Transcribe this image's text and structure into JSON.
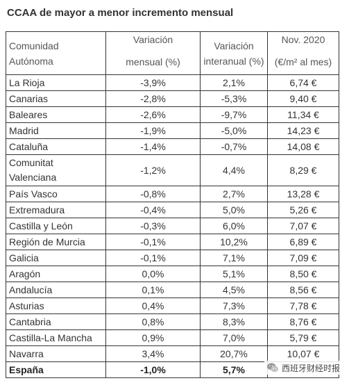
{
  "title": "CCAA de mayor a menor incremento mensual",
  "headers": {
    "col1": "Comunidad Autónoma",
    "col2_line1": "Variación",
    "col2_line2": "mensual (%)",
    "col3": "Variación interanual (%)",
    "col4_line1": "Nov. 2020",
    "col4_line2": "(€/m² al mes)"
  },
  "rows": [
    {
      "region": "La Rioja",
      "monthly": "-3,9%",
      "yearly": "2,1%",
      "price": "6,74 €"
    },
    {
      "region": "Canarias",
      "monthly": "-2,8%",
      "yearly": "-5,3%",
      "price": "9,40 €"
    },
    {
      "region": "Baleares",
      "monthly": "-2,6%",
      "yearly": "-9,7%",
      "price": "11,34 €"
    },
    {
      "region": "Madrid",
      "monthly": "-1,9%",
      "yearly": "-5,0%",
      "price": "14,23 €"
    },
    {
      "region": "Cataluña",
      "monthly": "-1,4%",
      "yearly": "-0,7%",
      "price": "14,08 €"
    },
    {
      "region": "Comunitat Valenciana",
      "monthly": "-1,2%",
      "yearly": "4,4%",
      "price": "8,29 €"
    },
    {
      "region": "País Vasco",
      "monthly": "-0,8%",
      "yearly": "2,7%",
      "price": "13,28 €"
    },
    {
      "region": "Extremadura",
      "monthly": "-0,4%",
      "yearly": "5,0%",
      "price": "5,26 €"
    },
    {
      "region": "Castilla y León",
      "monthly": "-0,3%",
      "yearly": "6,0%",
      "price": "7,07 €"
    },
    {
      "region": "Región de Murcia",
      "monthly": "-0,1%",
      "yearly": "10,2%",
      "price": "6,89 €"
    },
    {
      "region": "Galicia",
      "monthly": "-0,1%",
      "yearly": "7,1%",
      "price": "7,09 €"
    },
    {
      "region": "Aragón",
      "monthly": "0,0%",
      "yearly": "5,1%",
      "price": "8,50 €"
    },
    {
      "region": "Andalucía",
      "monthly": "0,1%",
      "yearly": "4,5%",
      "price": "8,56 €"
    },
    {
      "region": "Asturias",
      "monthly": "0,4%",
      "yearly": "7,3%",
      "price": "7,78 €"
    },
    {
      "region": "Cantabria",
      "monthly": "0,8%",
      "yearly": "8,3%",
      "price": "8,76 €"
    },
    {
      "region": "Castilla-La Mancha",
      "monthly": "0,9%",
      "yearly": "7,0%",
      "price": "5,79 €"
    },
    {
      "region": "Navarra",
      "monthly": "3,4%",
      "yearly": "20,7%",
      "price": "10,07 €"
    }
  ],
  "total": {
    "region": "España",
    "monthly": "-1,0%",
    "yearly": "5,7%",
    "price": ""
  },
  "watermark": {
    "text": "西班牙财经时报",
    "icon": "wechat-icon"
  }
}
